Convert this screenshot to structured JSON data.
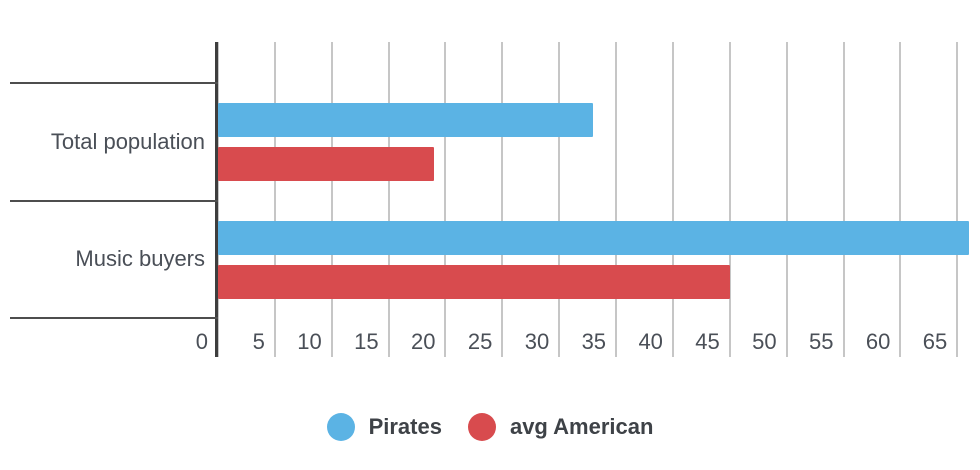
{
  "chart_data": {
    "type": "bar",
    "orientation": "horizontal",
    "categories": [
      "Total population",
      "Music buyers"
    ],
    "series": [
      {
        "name": "Pirates",
        "color": "#5bb3e4",
        "values": [
          33,
          66
        ]
      },
      {
        "name": "avg American",
        "color": "#d84b4e",
        "values": [
          19,
          45
        ]
      }
    ],
    "x_axis": {
      "min": 0,
      "max": 67,
      "tick_interval": 5,
      "tick_labels": [
        "0",
        "5",
        "10",
        "15",
        "20",
        "25",
        "30",
        "35",
        "40",
        "45",
        "50",
        "55",
        "60",
        "65"
      ]
    },
    "grid": true,
    "legend_position": "bottom",
    "colors": {
      "gridline": "#c6c6c6",
      "axis": "#3e3e3e",
      "separator": "#4e4e4e",
      "tick_text": "#4a4f57",
      "category_text": "#4a4f57",
      "legend_text": "#3e4247",
      "background": "#ffffff"
    }
  }
}
